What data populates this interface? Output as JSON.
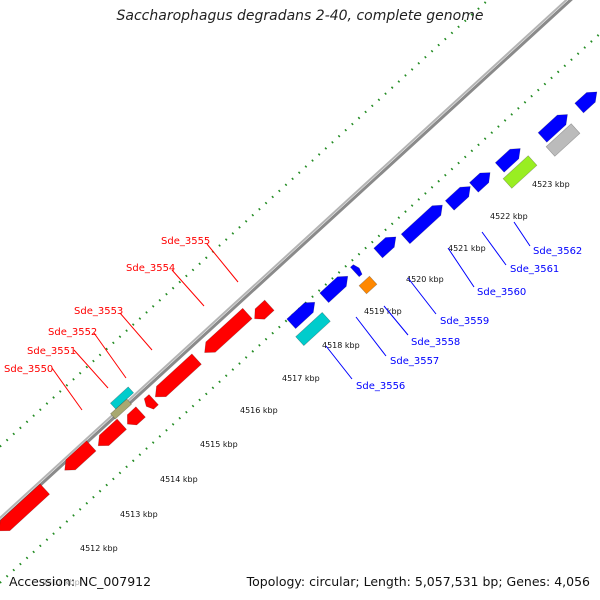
{
  "title": "Saccharophagus degradans 2-40, complete genome",
  "footer": {
    "accession": "Accession: NC_007912",
    "summary": "Topology: circular; Length: 5,057,531 bp; Genes: 4,056"
  },
  "colors": {
    "reverse_gene": "#ff0000",
    "forward_gene": "#0000ff",
    "backbone": "#8a8a8a",
    "ticks": "#228b22"
  },
  "tick_labels": [
    "4511 kbp",
    "4512 kbp",
    "4513 kbp",
    "4514 kbp",
    "4515 kbp",
    "4516 kbp",
    "4517 kbp",
    "4518 kbp",
    "4519 kbp",
    "4520 kbp",
    "4521 kbp",
    "4522 kbp",
    "4523 kbp"
  ],
  "reverse_gene_labels": [
    "Sde_3550",
    "Sde_3551",
    "Sde_3552",
    "Sde_3553",
    "Sde_3554",
    "Sde_3555"
  ],
  "forward_gene_labels": [
    "Sde_3556",
    "Sde_3557",
    "Sde_3558",
    "Sde_3559",
    "Sde_3560",
    "Sde_3561",
    "Sde_3562"
  ],
  "features": {
    "cyan": "#00cccc",
    "olive": "#a8a870",
    "orange": "#ff8800",
    "lime": "#99ee22",
    "grey": "#bbbbbb"
  }
}
